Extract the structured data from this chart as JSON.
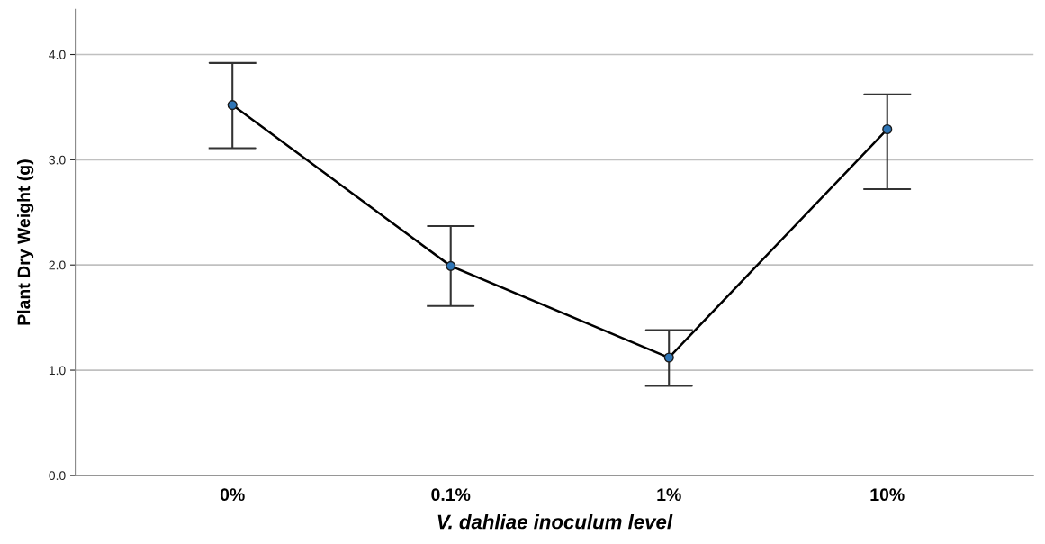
{
  "chart_data": {
    "type": "line",
    "xlabel": "V. dahliae inoculum level",
    "ylabel": "Plant Dry Weight (g)",
    "categories": [
      "0%",
      "0.1%",
      "1%",
      "10%"
    ],
    "color": "#000000",
    "values": [
      3.52,
      1.99,
      1.12,
      3.29
    ],
    "errors": [
      [
        3.11,
        3.92
      ],
      [
        1.61,
        2.37
      ],
      [
        0.85,
        1.38
      ],
      [
        2.72,
        3.62
      ]
    ],
    "ylim": [
      0,
      4.43
    ],
    "yticks": [
      {
        "value": 0,
        "label": "0.0"
      },
      {
        "value": 1,
        "label": "1.0"
      },
      {
        "value": 2,
        "label": "2.0"
      },
      {
        "value": 3,
        "label": "3.0"
      },
      {
        "value": 4,
        "label": "4.0"
      }
    ],
    "grid": "y",
    "marker": "circle",
    "line_style": "solid"
  }
}
